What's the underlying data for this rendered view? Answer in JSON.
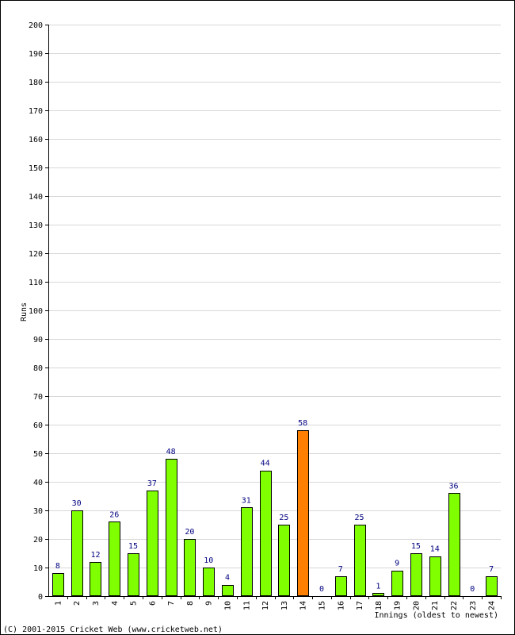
{
  "chart_data": {
    "type": "bar",
    "title": "",
    "xlabel": "Innings (oldest to newest)",
    "ylabel": "Runs",
    "ylim": [
      0,
      200
    ],
    "ytick_step": 10,
    "grid": true,
    "categories": [
      "1",
      "2",
      "3",
      "4",
      "5",
      "6",
      "7",
      "8",
      "9",
      "10",
      "11",
      "12",
      "13",
      "14",
      "15",
      "16",
      "17",
      "18",
      "19",
      "20",
      "21",
      "22",
      "23",
      "24"
    ],
    "values": [
      8,
      30,
      12,
      26,
      15,
      37,
      48,
      20,
      10,
      4,
      31,
      44,
      25,
      58,
      0,
      7,
      25,
      1,
      9,
      15,
      14,
      36,
      0,
      7
    ],
    "highlight_index": 13,
    "colors": {
      "bar": "#80ff00",
      "highlight": "#ff8000",
      "bar_border": "#000000",
      "grid": "#d8d8d8",
      "data_label": "#000080"
    }
  },
  "footer": {
    "copyright": "(C) 2001-2015 Cricket Web (www.cricketweb.net)"
  }
}
